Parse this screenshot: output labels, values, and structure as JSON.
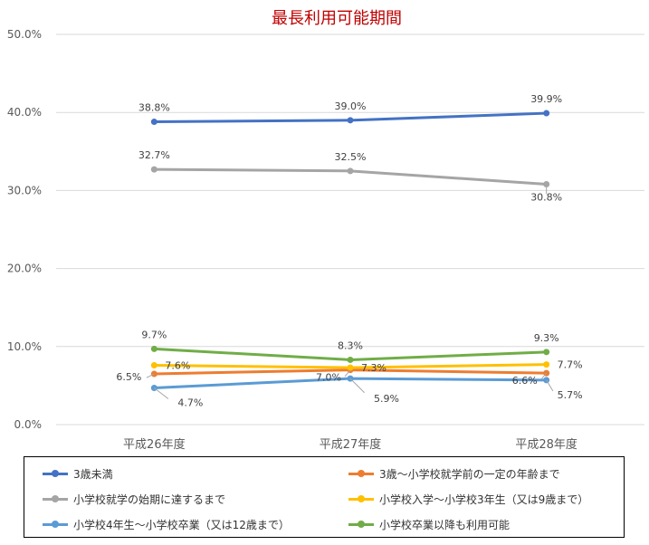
{
  "chart_data": {
    "type": "line",
    "title": "最長利用可能期間",
    "xlabel": "",
    "ylabel": "",
    "categories": [
      "平成26年度",
      "平成27年度",
      "平成28年度"
    ],
    "ylim": [
      0,
      50
    ],
    "yticks": [
      0,
      10,
      20,
      30,
      40,
      50
    ],
    "ytick_labels": [
      "0.0%",
      "10.0%",
      "20.0%",
      "30.0%",
      "40.0%",
      "50.0%"
    ],
    "grid": true,
    "legend_position": "bottom",
    "series": [
      {
        "name": "3歳未満",
        "color": "#4472C4",
        "values": [
          38.8,
          39.0,
          39.9
        ],
        "labels": [
          "38.8%",
          "39.0%",
          "39.9%"
        ]
      },
      {
        "name": "3歳〜小学校就学前の一定の年齢まで",
        "color": "#ED7D31",
        "values": [
          6.5,
          7.0,
          6.6
        ],
        "labels": [
          "6.5%",
          "7.0%",
          "6.6%"
        ]
      },
      {
        "name": "小学校就学の始期に達するまで",
        "color": "#A5A5A5",
        "values": [
          32.7,
          32.5,
          30.8
        ],
        "labels": [
          "32.7%",
          "32.5%",
          "30.8%"
        ]
      },
      {
        "name": "小学校入学〜小学校3年生（又は9歳まで）",
        "color": "#FFC000",
        "values": [
          7.6,
          7.3,
          7.7
        ],
        "labels": [
          "7.6%",
          "7.3%",
          "7.7%"
        ]
      },
      {
        "name": "小学校4年生〜小学校卒業（又は12歳まで）",
        "color": "#5B9BD5",
        "values": [
          4.7,
          5.9,
          5.7
        ],
        "labels": [
          "4.7%",
          "5.9%",
          "5.7%"
        ]
      },
      {
        "name": "小学校卒業以降も利用可能",
        "color": "#70AD47",
        "values": [
          9.7,
          8.3,
          9.3
        ],
        "labels": [
          "9.7%",
          "8.3%",
          "9.3%"
        ]
      }
    ]
  }
}
